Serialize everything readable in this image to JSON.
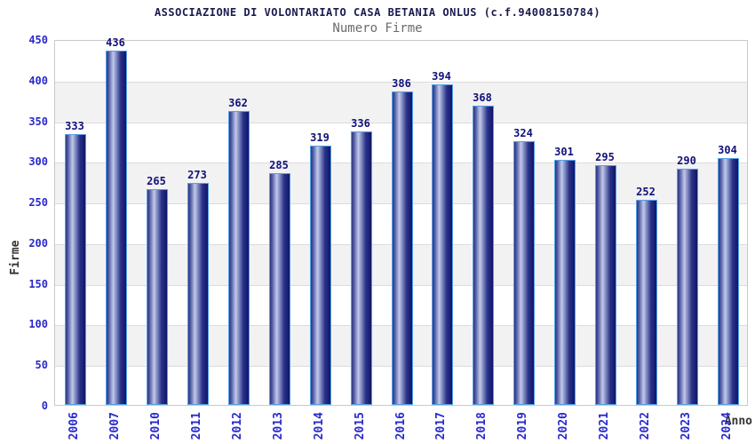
{
  "chart_data": {
    "type": "bar",
    "title": "ASSOCIAZIONE DI VOLONTARIATO CASA BETANIA ONLUS (c.f.94008150784)",
    "subtitle": "Numero Firme",
    "xlabel": "Anno",
    "ylabel": "Firme",
    "categories": [
      "2006",
      "2007",
      "2010",
      "2011",
      "2012",
      "2013",
      "2014",
      "2015",
      "2016",
      "2017",
      "2018",
      "2019",
      "2020",
      "2021",
      "2022",
      "2023",
      "2024"
    ],
    "values": [
      333,
      436,
      265,
      273,
      362,
      285,
      319,
      336,
      386,
      394,
      368,
      324,
      301,
      295,
      252,
      290,
      304
    ],
    "ylim": [
      0,
      450
    ],
    "ytick_step": 50,
    "grid": "horizontal-bands",
    "legend": "none"
  },
  "colors": {
    "title": "#1b1b4f",
    "subtitle": "#6b6b6b",
    "tick_label": "#2929cc",
    "value_label": "#11117a",
    "axis_title": "#333333",
    "band": "#f2f2f2",
    "gridline": "#dcdcdc",
    "plot_border": "#c9c9c9",
    "bar_border": "#54a0e6",
    "bar_gradient": [
      "#2c357e",
      "#545fa8",
      "#c3c9e9",
      "#7f8ac0",
      "#2a3288",
      "#10156a"
    ]
  }
}
